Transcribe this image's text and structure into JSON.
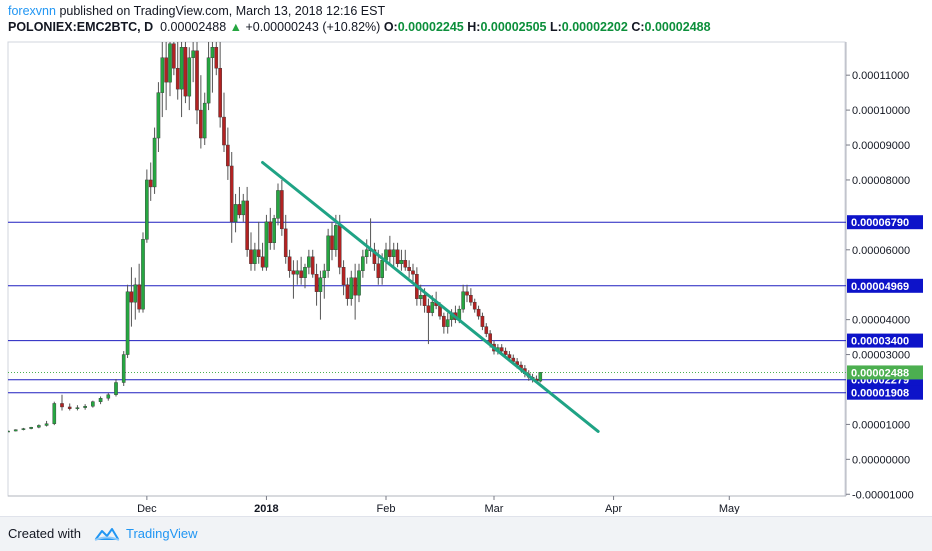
{
  "header": {
    "author": "forexvnn",
    "published_text": "published on TradingView.com, March 13, 2018 12:16 EST",
    "symbol": "POLONIEX:EMC2BTC, D",
    "last": "0.00002488",
    "change": "+0.00000243 (+10.82%)",
    "o_label": "O:",
    "o_value": "0.00002245",
    "h_label": "H:",
    "h_value": "0.00002505",
    "l_label": "L:",
    "l_value": "0.00002202",
    "c_label": "C:",
    "c_value": "0.00002488"
  },
  "footer": {
    "created_with": "Created with",
    "brand": "TradingView",
    "logo_icon": "tradingview-cloud-icon"
  },
  "colors": {
    "up": "#26a641",
    "down": "#b22222",
    "level_line": "#1f1fbf",
    "trendline": "#1fa385",
    "level_label_bg": "#0d13c9",
    "last_price_bg": "#4caf50"
  },
  "chart_data": {
    "type": "candlestick",
    "y_axis": {
      "min": -1.05e-05,
      "max": 0.0001195,
      "ticks": [
        "0.00011000",
        "0.00010000",
        "0.00009000",
        "0.00008000",
        "0.00006000",
        "0.00004000",
        "0.00003000",
        "0.00001000",
        "0.00000000",
        "-0.00001000"
      ]
    },
    "x_axis": {
      "labels": [
        {
          "label": "Dec",
          "date": "2017-12-01"
        },
        {
          "label": "2018",
          "date": "2018-01-01"
        },
        {
          "label": "Feb",
          "date": "2018-02-01"
        },
        {
          "label": "Mar",
          "date": "2018-03-01"
        },
        {
          "label": "Apr",
          "date": "2018-04-01"
        },
        {
          "label": "May",
          "date": "2018-05-01"
        }
      ],
      "start": "2017-10-26",
      "end": "2018-05-31"
    },
    "horizontal_levels": [
      {
        "price": 6.79e-05,
        "label": "0.00006790"
      },
      {
        "price": 4.969e-05,
        "label": "0.00004969"
      },
      {
        "price": 3.4e-05,
        "label": "0.00003400"
      },
      {
        "price": 2.279e-05,
        "label": "0.00002279"
      },
      {
        "price": 1.908e-05,
        "label": "0.00001908"
      }
    ],
    "last_price": {
      "price": 2.488e-05,
      "label": "0.00002488"
    },
    "trendline": {
      "start": {
        "date": "2017-12-31",
        "price": 8.5e-05
      },
      "end": {
        "date": "2018-03-28",
        "price": 8e-06
      }
    },
    "candles": [
      [
        "2017-10-26",
        8.1e-06,
        8.3e-06,
        7.9e-06,
        8.1e-06
      ],
      [
        "2017-10-28",
        8.1e-06,
        8.6e-06,
        8e-06,
        8.5e-06
      ],
      [
        "2017-10-30",
        8.5e-06,
        9e-06,
        8.3e-06,
        8.8e-06
      ],
      [
        "2017-11-01",
        8.8e-06,
        9.3e-06,
        8.6e-06,
        9.2e-06
      ],
      [
        "2017-11-03",
        9.2e-06,
        1e-05,
        8.9e-06,
        9.7e-06
      ],
      [
        "2017-11-05",
        9.7e-06,
        1.1e-05,
        9.4e-06,
        1.02e-05
      ],
      [
        "2017-11-07",
        1.02e-05,
        1.65e-05,
        9.8e-06,
        1.6e-05
      ],
      [
        "2017-11-09",
        1.6e-05,
        1.85e-05,
        1.4e-05,
        1.5e-05
      ],
      [
        "2017-11-11",
        1.5e-05,
        1.6e-05,
        1.4e-05,
        1.45e-05
      ],
      [
        "2017-11-13",
        1.45e-05,
        1.55e-05,
        1.4e-05,
        1.48e-05
      ],
      [
        "2017-11-15",
        1.48e-05,
        1.58e-05,
        1.42e-05,
        1.52e-05
      ],
      [
        "2017-11-17",
        1.52e-05,
        1.68e-05,
        1.48e-05,
        1.65e-05
      ],
      [
        "2017-11-19",
        1.65e-05,
        1.8e-05,
        1.58e-05,
        1.75e-05
      ],
      [
        "2017-11-21",
        1.75e-05,
        1.9e-05,
        1.68e-05,
        1.85e-05
      ],
      [
        "2017-11-23",
        1.85e-05,
        2.3e-05,
        1.8e-05,
        2.2e-05
      ],
      [
        "2017-11-25",
        2.2e-05,
        3.1e-05,
        2.1e-05,
        3e-05
      ],
      [
        "2017-11-26",
        3e-05,
        5e-05,
        2.9e-05,
        4.8e-05
      ],
      [
        "2017-11-27",
        4.8e-05,
        5.5e-05,
        3.8e-05,
        4.5e-05
      ],
      [
        "2017-11-28",
        4.5e-05,
        5.2e-05,
        4e-05,
        5e-05
      ],
      [
        "2017-11-29",
        5e-05,
        5.6e-05,
        4.2e-05,
        4.3e-05
      ],
      [
        "2017-11-30",
        4.3e-05,
        6.5e-05,
        4.2e-05,
        6.3e-05
      ],
      [
        "2017-12-01",
        6.3e-05,
        8.3e-05,
        6.2e-05,
        8e-05
      ],
      [
        "2017-12-02",
        8e-05,
        8.5e-05,
        7.4e-05,
        7.8e-05
      ],
      [
        "2017-12-03",
        7.8e-05,
        9.5e-05,
        7.6e-05,
        9.2e-05
      ],
      [
        "2017-12-04",
        9.2e-05,
        0.000108,
        8.8e-05,
        0.000105
      ],
      [
        "2017-12-05",
        0.000105,
        0.00012,
        9.8e-05,
        0.000115
      ],
      [
        "2017-12-06",
        0.000115,
        0.00012,
        0.0001,
        0.000108
      ],
      [
        "2017-12-07",
        0.000108,
        0.00012,
        0.000104,
        0.000119
      ],
      [
        "2017-12-08",
        0.000119,
        0.00012,
        0.00011,
        0.000112
      ],
      [
        "2017-12-09",
        0.000112,
        0.00012,
        0.000103,
        0.000106
      ],
      [
        "2017-12-10",
        0.000106,
        0.00012,
        9.8e-05,
        0.000118
      ],
      [
        "2017-12-11",
        0.000118,
        0.00012,
        0.000102,
        0.000104
      ],
      [
        "2017-12-12",
        0.000104,
        0.000118,
        0.0001,
        0.000115
      ],
      [
        "2017-12-13",
        0.000115,
        0.00012,
        0.000108,
        0.000117
      ],
      [
        "2017-12-14",
        0.000117,
        0.00012,
        9.6e-05,
        0.0001
      ],
      [
        "2017-12-15",
        0.0001,
        0.00011,
        8.9e-05,
        9.2e-05
      ],
      [
        "2017-12-16",
        9.2e-05,
        0.000105,
        9e-05,
        0.000102
      ],
      [
        "2017-12-17",
        0.000102,
        0.00012,
        0.0001,
        0.000115
      ],
      [
        "2017-12-18",
        0.000115,
        0.00012,
        0.000105,
        0.000118
      ],
      [
        "2017-12-19",
        0.000118,
        0.00012,
        0.00011,
        0.000112
      ],
      [
        "2017-12-20",
        0.000112,
        0.00012,
        9.5e-05,
        9.8e-05
      ],
      [
        "2017-12-21",
        9.8e-05,
        0.000105,
        8.8e-05,
        9e-05
      ],
      [
        "2017-12-22",
        9e-05,
        9.5e-05,
        8e-05,
        8.4e-05
      ],
      [
        "2017-12-23",
        8.4e-05,
        8.8e-05,
        6.2e-05,
        6.8e-05
      ],
      [
        "2017-12-24",
        6.8e-05,
        7.6e-05,
        6.5e-05,
        7.3e-05
      ],
      [
        "2017-12-25",
        7.3e-05,
        7.8e-05,
        6.9e-05,
        7e-05
      ],
      [
        "2017-12-26",
        7e-05,
        7.6e-05,
        6.8e-05,
        7.4e-05
      ],
      [
        "2017-12-27",
        7.4e-05,
        7.8e-05,
        5.8e-05,
        6e-05
      ],
      [
        "2017-12-28",
        6e-05,
        6.5e-05,
        5.4e-05,
        5.6e-05
      ],
      [
        "2017-12-29",
        5.6e-05,
        6.2e-05,
        5.4e-05,
        6e-05
      ],
      [
        "2017-12-30",
        6e-05,
        6.8e-05,
        5.6e-05,
        5.8e-05
      ],
      [
        "2017-12-31",
        5.8e-05,
        6.2e-05,
        5.4e-05,
        5.5e-05
      ],
      [
        "2018-01-01",
        5.5e-05,
        7e-05,
        5.4e-05,
        6.8e-05
      ],
      [
        "2018-01-02",
        6.8e-05,
        7.2e-05,
        6e-05,
        6.2e-05
      ],
      [
        "2018-01-03",
        6.2e-05,
        7e-05,
        6e-05,
        6.9e-05
      ],
      [
        "2018-01-04",
        6.9e-05,
        7.9e-05,
        6.7e-05,
        7.7e-05
      ],
      [
        "2018-01-05",
        7.7e-05,
        8e-05,
        6.4e-05,
        6.6e-05
      ],
      [
        "2018-01-06",
        6.6e-05,
        7e-05,
        5.6e-05,
        5.8e-05
      ],
      [
        "2018-01-07",
        5.8e-05,
        6e-05,
        5.2e-05,
        5.4e-05
      ],
      [
        "2018-01-08",
        5.4e-05,
        5.7e-05,
        4.6e-05,
        5.3e-05
      ],
      [
        "2018-01-09",
        5.3e-05,
        5.7e-05,
        5e-05,
        5.4e-05
      ],
      [
        "2018-01-10",
        5.4e-05,
        5.8e-05,
        5e-05,
        5.2e-05
      ],
      [
        "2018-01-11",
        5.2e-05,
        5.6e-05,
        4.9e-05,
        5.5e-05
      ],
      [
        "2018-01-12",
        5.5e-05,
        6e-05,
        5.3e-05,
        5.8e-05
      ],
      [
        "2018-01-13",
        5.8e-05,
        6e-05,
        5.2e-05,
        5.3e-05
      ],
      [
        "2018-01-14",
        5.3e-05,
        5.6e-05,
        4.4e-05,
        4.8e-05
      ],
      [
        "2018-01-15",
        4.8e-05,
        5.4e-05,
        4e-05,
        5.2e-05
      ],
      [
        "2018-01-16",
        5.2e-05,
        5.6e-05,
        4.6e-05,
        5.4e-05
      ],
      [
        "2018-01-17",
        5.4e-05,
        6.6e-05,
        5.2e-05,
        6.4e-05
      ],
      [
        "2018-01-18",
        6.4e-05,
        6.8e-05,
        5.7e-05,
        6e-05
      ],
      [
        "2018-01-19",
        6e-05,
        7e-05,
        5.8e-05,
        6.7e-05
      ],
      [
        "2018-01-20",
        6.7e-05,
        7e-05,
        5.3e-05,
        5.5e-05
      ],
      [
        "2018-01-21",
        5.5e-05,
        5.7e-05,
        4.7e-05,
        5e-05
      ],
      [
        "2018-01-22",
        5e-05,
        5.2e-05,
        4.4e-05,
        4.6e-05
      ],
      [
        "2018-01-23",
        4.6e-05,
        5.4e-05,
        4.4e-05,
        5.2e-05
      ],
      [
        "2018-01-24",
        5.2e-05,
        5.6e-05,
        4e-05,
        4.7e-05
      ],
      [
        "2018-01-25",
        4.7e-05,
        5.6e-05,
        4.5e-05,
        5.4e-05
      ],
      [
        "2018-01-26",
        5.4e-05,
        6e-05,
        5.2e-05,
        5.8e-05
      ],
      [
        "2018-01-27",
        5.8e-05,
        6.3e-05,
        5.6e-05,
        6e-05
      ],
      [
        "2018-01-28",
        6e-05,
        6.9e-05,
        5.8e-05,
        6e-05
      ],
      [
        "2018-01-29",
        6e-05,
        6.2e-05,
        5.4e-05,
        5.6e-05
      ],
      [
        "2018-01-30",
        5.6e-05,
        6e-05,
        5e-05,
        5.2e-05
      ],
      [
        "2018-01-31",
        5.2e-05,
        5.9e-05,
        5e-05,
        5.7e-05
      ],
      [
        "2018-02-01",
        5.7e-05,
        6.2e-05,
        5.4e-05,
        6e-05
      ],
      [
        "2018-02-02",
        6e-05,
        6.4e-05,
        5.6e-05,
        5.8e-05
      ],
      [
        "2018-02-03",
        5.8e-05,
        6.2e-05,
        5.5e-05,
        6e-05
      ],
      [
        "2018-02-04",
        6e-05,
        6.2e-05,
        5.5e-05,
        5.6e-05
      ],
      [
        "2018-02-05",
        5.6e-05,
        6e-05,
        5.4e-05,
        5.7e-05
      ],
      [
        "2018-02-06",
        5.7e-05,
        6e-05,
        5.4e-05,
        5.5e-05
      ],
      [
        "2018-02-07",
        5.5e-05,
        5.7e-05,
        5.2e-05,
        5.4e-05
      ],
      [
        "2018-02-08",
        5.4e-05,
        5.6e-05,
        5.1e-05,
        5.3e-05
      ],
      [
        "2018-02-09",
        5.3e-05,
        5.5e-05,
        4.4e-05,
        4.6e-05
      ],
      [
        "2018-02-10",
        4.6e-05,
        5e-05,
        4.4e-05,
        4.7e-05
      ],
      [
        "2018-02-11",
        4.7e-05,
        4.9e-05,
        4.2e-05,
        4.4e-05
      ],
      [
        "2018-02-12",
        4.4e-05,
        4.6e-05,
        3.3e-05,
        4.2e-05
      ],
      [
        "2018-02-13",
        4.2e-05,
        4.7e-05,
        4.1e-05,
        4.5e-05
      ],
      [
        "2018-02-14",
        4.5e-05,
        4.8e-05,
        4.3e-05,
        4.4e-05
      ],
      [
        "2018-02-15",
        4.4e-05,
        4.5e-05,
        4e-05,
        4.1e-05
      ],
      [
        "2018-02-16",
        4.1e-05,
        4.2e-05,
        3.6e-05,
        3.8e-05
      ],
      [
        "2018-02-17",
        3.8e-05,
        4.2e-05,
        3.6e-05,
        4e-05
      ],
      [
        "2018-02-18",
        4e-05,
        4.3e-05,
        3.8e-05,
        4.2e-05
      ],
      [
        "2018-02-19",
        4.2e-05,
        4.4e-05,
        3.9e-05,
        4e-05
      ],
      [
        "2018-02-20",
        4e-05,
        4.4e-05,
        3.9e-05,
        4.3e-05
      ],
      [
        "2018-02-21",
        4.3e-05,
        5e-05,
        4.2e-05,
        4.8e-05
      ],
      [
        "2018-02-22",
        4.8e-05,
        5e-05,
        4.5e-05,
        4.7e-05
      ],
      [
        "2018-02-23",
        4.7e-05,
        4.9e-05,
        4.4e-05,
        4.5e-05
      ],
      [
        "2018-02-24",
        4.5e-05,
        4.6e-05,
        4.2e-05,
        4.3e-05
      ],
      [
        "2018-02-25",
        4.3e-05,
        4.4e-05,
        4e-05,
        4.1e-05
      ],
      [
        "2018-02-26",
        4.1e-05,
        4.2e-05,
        3.7e-05,
        3.8e-05
      ],
      [
        "2018-02-27",
        3.8e-05,
        3.9e-05,
        3.5e-05,
        3.6e-05
      ],
      [
        "2018-02-28",
        3.6e-05,
        3.7e-05,
        3.2e-05,
        3.3e-05
      ],
      [
        "2018-03-01",
        3.3e-05,
        3.4e-05,
        3e-05,
        3.1e-05
      ],
      [
        "2018-03-02",
        3.1e-05,
        3.3e-05,
        3e-05,
        3.2e-05
      ],
      [
        "2018-03-03",
        3.2e-05,
        3.3e-05,
        3e-05,
        3.1e-05
      ],
      [
        "2018-03-04",
        3.1e-05,
        3.2e-05,
        2.9e-05,
        3e-05
      ],
      [
        "2018-03-05",
        3e-05,
        3.1e-05,
        2.8e-05,
        2.9e-05
      ],
      [
        "2018-03-06",
        2.9e-05,
        3e-05,
        2.7e-05,
        2.8e-05
      ],
      [
        "2018-03-07",
        2.8e-05,
        2.9e-05,
        2.6e-05,
        2.7e-05
      ],
      [
        "2018-03-08",
        2.7e-05,
        2.8e-05,
        2.5e-05,
        2.6e-05
      ],
      [
        "2018-03-09",
        2.6e-05,
        2.7e-05,
        2.35e-05,
        2.45e-05
      ],
      [
        "2018-03-10",
        2.45e-05,
        2.55e-05,
        2.25e-05,
        2.35e-05
      ],
      [
        "2018-03-11",
        2.35e-05,
        2.45e-05,
        2.2e-05,
        2.3e-05
      ],
      [
        "2018-03-12",
        2.3e-05,
        2.4e-05,
        2.2e-05,
        2.25e-05
      ],
      [
        "2018-03-13",
        2.24e-05,
        2.5e-05,
        2.2e-05,
        2.49e-05
      ]
    ]
  }
}
